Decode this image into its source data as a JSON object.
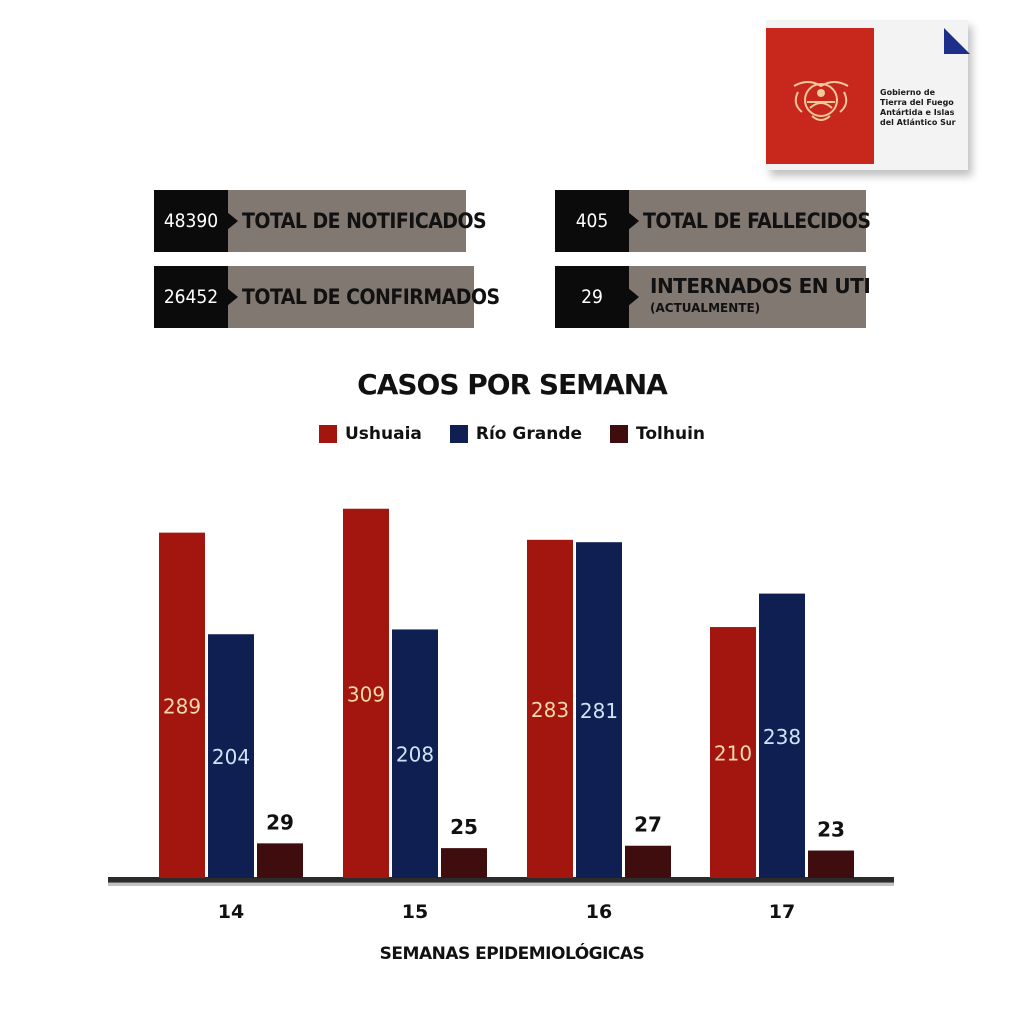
{
  "logo": {
    "text": "Gobierno de\nTierra del Fuego\nAntártida e Islas\ndel Atlántico Sur"
  },
  "stats": [
    {
      "value": "48390",
      "label": "TOTAL DE NOTIFICADOS"
    },
    {
      "value": "26452",
      "label": "TOTAL DE CONFIRMADOS"
    },
    {
      "value": "405",
      "label": "TOTAL DE FALLECIDOS"
    },
    {
      "value": "29",
      "label": "INTERNADOS EN UTI",
      "sublabel": "(ACTUALMENTE)"
    }
  ],
  "colors": {
    "ushuaia": "#a3150f",
    "rio_grande": "#0f1f52",
    "tolhuin": "#3f0d0d",
    "stat_dark": "#0b0b0b",
    "stat_gray": "#817872"
  },
  "chart_data": {
    "type": "bar",
    "title": "CASOS POR SEMANA",
    "xlabel": "SEMANAS EPIDEMIOLÓGICAS",
    "ylabel": "",
    "categories": [
      "14",
      "15",
      "16",
      "17"
    ],
    "series": [
      {
        "name": "Ushuaia",
        "values": [
          289,
          309,
          283,
          210
        ]
      },
      {
        "name": "Río Grande",
        "values": [
          204,
          208,
          281,
          238
        ]
      },
      {
        "name": "Tolhuin",
        "values": [
          29,
          25,
          27,
          23
        ]
      }
    ],
    "ylim": [
      0,
      309
    ],
    "legend": "top-center",
    "grid": false
  }
}
